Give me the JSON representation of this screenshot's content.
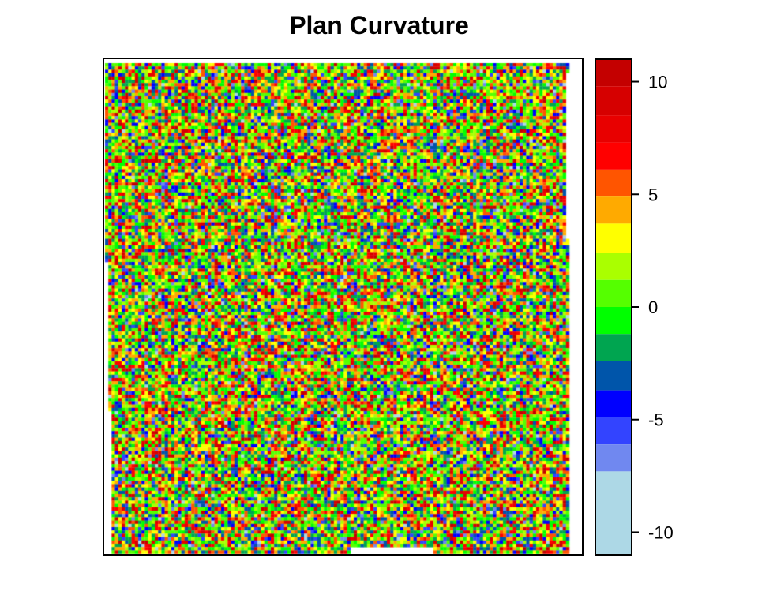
{
  "chart_data": {
    "type": "heatmap",
    "title": "Plan Curvature",
    "xlabel": "",
    "ylabel": "",
    "legend_position": "right",
    "colorbar": {
      "range": [
        -11,
        11
      ],
      "ticks": [
        10,
        5,
        0,
        -5,
        -10
      ],
      "tick_labels": [
        "10",
        "5",
        "0",
        "-5",
        "-10"
      ],
      "bins": [
        {
          "from": 9.8,
          "to": 11.0,
          "color": "#C40000"
        },
        {
          "from": 8.5,
          "to": 9.8,
          "color": "#D60000"
        },
        {
          "from": 7.3,
          "to": 8.5,
          "color": "#E80000"
        },
        {
          "from": 6.1,
          "to": 7.3,
          "color": "#FF0000"
        },
        {
          "from": 4.9,
          "to": 6.1,
          "color": "#FF5500"
        },
        {
          "from": 3.7,
          "to": 4.9,
          "color": "#FFAA00"
        },
        {
          "from": 2.4,
          "to": 3.7,
          "color": "#FFFF00"
        },
        {
          "from": 1.2,
          "to": 2.4,
          "color": "#AAFF00"
        },
        {
          "from": 0.0,
          "to": 1.2,
          "color": "#55FF00"
        },
        {
          "from": -1.2,
          "to": 0.0,
          "color": "#00FF00"
        },
        {
          "from": -2.4,
          "to": -1.2,
          "color": "#00A550"
        },
        {
          "from": -3.7,
          "to": -2.4,
          "color": "#0055AA"
        },
        {
          "from": -4.9,
          "to": -3.7,
          "color": "#0000FF"
        },
        {
          "from": -6.1,
          "to": -4.9,
          "color": "#3344FF"
        },
        {
          "from": -7.3,
          "to": -6.1,
          "color": "#7088F0"
        },
        {
          "from": -11.0,
          "to": -7.3,
          "color": "#ADD8E6"
        }
      ]
    }
  }
}
